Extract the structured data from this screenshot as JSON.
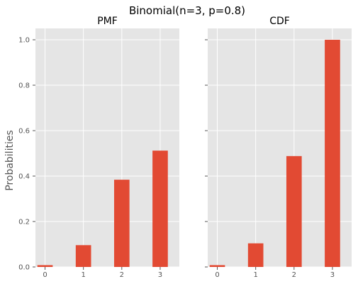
{
  "figure": {
    "title": "Binomial(n=3, p=0.8)",
    "ylabel": "Probabilities",
    "background": "#ffffff",
    "panel_background": "#e5e5e5",
    "grid_color": "#ffffff",
    "bar_color": "#e24a33",
    "tick_color": "#555555"
  },
  "chart_data": [
    {
      "type": "bar",
      "title": "PMF",
      "categories": [
        "0",
        "1",
        "2",
        "3"
      ],
      "x": [
        0,
        1,
        2,
        3
      ],
      "values": [
        0.008,
        0.096,
        0.384,
        0.512
      ],
      "xlim": [
        -0.25,
        3.5
      ],
      "ylim": [
        0,
        1.05
      ],
      "yticks": [
        "0.0",
        "0.2",
        "0.4",
        "0.6",
        "0.8",
        "1.0"
      ],
      "grid": true,
      "ylabel": "Probabilities"
    },
    {
      "type": "bar",
      "title": "CDF",
      "categories": [
        "0",
        "1",
        "2",
        "3"
      ],
      "x": [
        0,
        1,
        2,
        3
      ],
      "values": [
        0.008,
        0.104,
        0.488,
        1.0
      ],
      "xlim": [
        -0.25,
        3.5
      ],
      "ylim": [
        0,
        1.05
      ],
      "yticks": [
        "0.0",
        "0.2",
        "0.4",
        "0.6",
        "0.8",
        "1.0"
      ],
      "grid": true,
      "ylabel": ""
    }
  ]
}
